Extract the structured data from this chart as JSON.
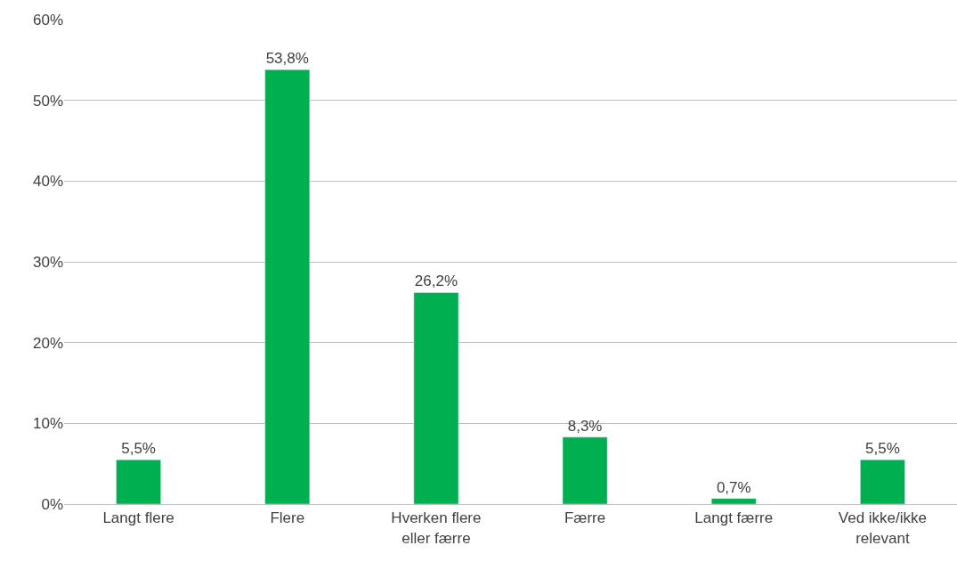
{
  "chart_data": {
    "type": "bar",
    "categories": [
      "Langt flere",
      "Flere",
      "Hverken flere eller færre",
      "Færre",
      "Langt færre",
      "Ved ikke/ikke relevant"
    ],
    "values": [
      5.5,
      53.8,
      26.2,
      8.3,
      0.7,
      5.5
    ],
    "value_labels": [
      "5,5%",
      "53,8%",
      "26,2%",
      "8,3%",
      "0,7%",
      "5,5%"
    ],
    "color": "#00b050",
    "ylim": [
      0,
      60
    ],
    "yticks": [
      {
        "value": 0,
        "label": "0%"
      },
      {
        "value": 10,
        "label": "10%"
      },
      {
        "value": 20,
        "label": "20%"
      },
      {
        "value": 30,
        "label": "30%"
      },
      {
        "value": 40,
        "label": "40%"
      },
      {
        "value": 50,
        "label": "50%"
      },
      {
        "value": 60,
        "label": "60%"
      }
    ],
    "grid": "y",
    "legend": false
  }
}
